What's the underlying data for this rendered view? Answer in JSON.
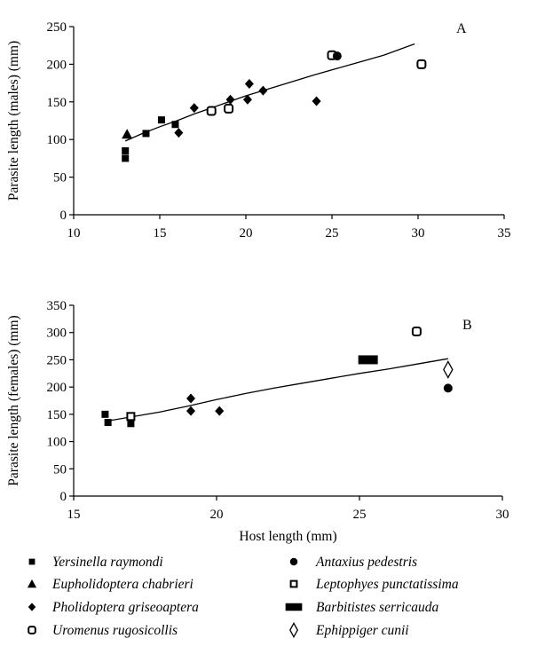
{
  "chart_data": [
    {
      "type": "scatter",
      "panel_label": "A",
      "title": "",
      "xlabel": "",
      "ylabel": "Parasite length (males) (mm)",
      "xlim": [
        10,
        35
      ],
      "ylim": [
        0,
        250
      ],
      "xticks": [
        "10",
        "15",
        "20",
        "25",
        "30",
        "35"
      ],
      "yticks": [
        "0",
        "50",
        "100",
        "150",
        "200",
        "250"
      ],
      "grid": false,
      "trendline": [
        [
          13,
          98
        ],
        [
          14,
          108
        ],
        [
          15,
          117
        ],
        [
          16,
          125
        ],
        [
          17,
          134
        ],
        [
          18,
          142
        ],
        [
          19,
          150
        ],
        [
          20,
          158
        ],
        [
          22,
          172
        ],
        [
          24,
          186
        ],
        [
          26,
          199
        ],
        [
          28,
          212
        ],
        [
          29.8,
          227
        ]
      ],
      "series": [
        {
          "name": "Yersinella raymondi",
          "x": [
            13,
            13,
            14.2,
            15.1,
            15.9
          ],
          "y": [
            75,
            85,
            108,
            126,
            120
          ]
        },
        {
          "name": "Eupholidoptera chabrieri",
          "x": [
            13.1
          ],
          "y": [
            107
          ]
        },
        {
          "name": "Pholidoptera griseoaptera",
          "x": [
            16.1,
            17,
            19.1,
            20.1,
            20.2,
            21,
            24.1
          ],
          "y": [
            109,
            142,
            153,
            153,
            174,
            165,
            151
          ]
        },
        {
          "name": "Uromenus rugosicollis",
          "x": [
            18,
            19,
            25,
            30.2
          ],
          "y": [
            138,
            141,
            212,
            200
          ]
        },
        {
          "name": "Antaxius pedestris",
          "x": [
            25.3
          ],
          "y": [
            211
          ]
        }
      ]
    },
    {
      "type": "scatter",
      "panel_label": "B",
      "title": "",
      "xlabel": "Host length (mm)",
      "ylabel": "Parasite length (females) (mm)",
      "xlim": [
        15,
        30
      ],
      "ylim": [
        0,
        350
      ],
      "xticks": [
        "15",
        "20",
        "25",
        "30"
      ],
      "yticks": [
        "0",
        "50",
        "100",
        "150",
        "200",
        "250",
        "300",
        "350"
      ],
      "grid": false,
      "trendline": [
        [
          16.1,
          137
        ],
        [
          17,
          145
        ],
        [
          18,
          154
        ],
        [
          19,
          165
        ],
        [
          20,
          177
        ],
        [
          21,
          188
        ],
        [
          22,
          198
        ],
        [
          23,
          207
        ],
        [
          24,
          216
        ],
        [
          25,
          225
        ],
        [
          26,
          233
        ],
        [
          27,
          242
        ],
        [
          28.1,
          252
        ]
      ],
      "series": [
        {
          "name": "Yersinella raymondi",
          "x": [
            16.1,
            16.2,
            17
          ],
          "y": [
            150,
            135,
            133
          ]
        },
        {
          "name": "Pholidoptera griseoaptera",
          "x": [
            19.1,
            19.1,
            20.1
          ],
          "y": [
            179,
            156,
            156
          ]
        },
        {
          "name": "Uromenus rugosicollis",
          "x": [
            27
          ],
          "y": [
            302
          ]
        },
        {
          "name": "Antaxius pedestris",
          "x": [
            28.1
          ],
          "y": [
            198
          ]
        },
        {
          "name": "Leptophyes punctatissima",
          "x": [
            17
          ],
          "y": [
            146
          ]
        },
        {
          "name": "Barbitistes serricauda",
          "x": [
            25.3
          ],
          "y": [
            250
          ]
        },
        {
          "name": "Ephippiger cunii",
          "x": [
            28.1
          ],
          "y": [
            232
          ]
        }
      ]
    }
  ],
  "legend": {
    "placement": "bottom",
    "items": [
      {
        "label": "Yersinella raymondi",
        "marker": "square-filled"
      },
      {
        "label": "Antaxius pedestris",
        "marker": "circle-filled"
      },
      {
        "label": "Eupholidoptera chabrieri",
        "marker": "triangle-filled"
      },
      {
        "label": "Leptophyes punctatissima",
        "marker": "square-open"
      },
      {
        "label": "Pholidoptera griseoaptera",
        "marker": "diamond-filled"
      },
      {
        "label": "Barbitistes serricauda",
        "marker": "rectangle-filled"
      },
      {
        "label": "Uromenus rugosicollis",
        "marker": "square-open-rounded"
      },
      {
        "label": "Ephippiger cunii",
        "marker": "diamond-open"
      }
    ]
  }
}
